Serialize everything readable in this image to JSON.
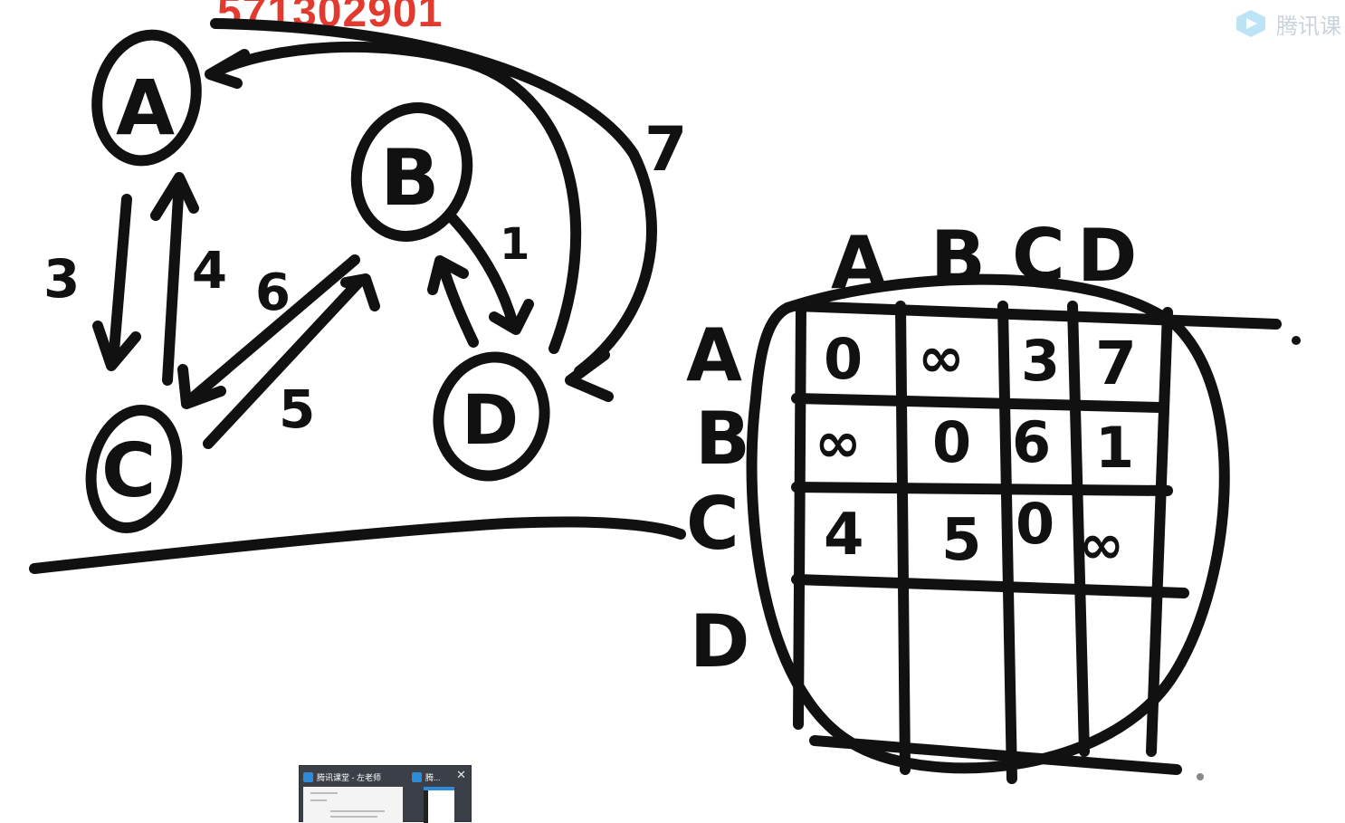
{
  "watermark": {
    "number": "571302901"
  },
  "brand": {
    "name": "腾讯课"
  },
  "graph": {
    "nodes": [
      "A",
      "B",
      "C",
      "D"
    ],
    "edge_weights": [
      "3",
      "4",
      "6",
      "5",
      "1",
      "7"
    ]
  },
  "matrix": {
    "col_headers": [
      "A",
      "B",
      "C",
      "D"
    ],
    "row_headers": [
      "A",
      "B",
      "C",
      "D"
    ],
    "rows": [
      [
        "0",
        "∞",
        "3",
        "7"
      ],
      [
        "∞",
        "0",
        "6",
        "1"
      ],
      [
        "4",
        "5",
        "0",
        "∞"
      ],
      [
        "",
        "",
        "",
        ""
      ]
    ]
  },
  "taskbar": {
    "tab1_title": "腾讯课堂 - 左老师",
    "tab2_title": "腾...",
    "close_symbol": "✕"
  }
}
